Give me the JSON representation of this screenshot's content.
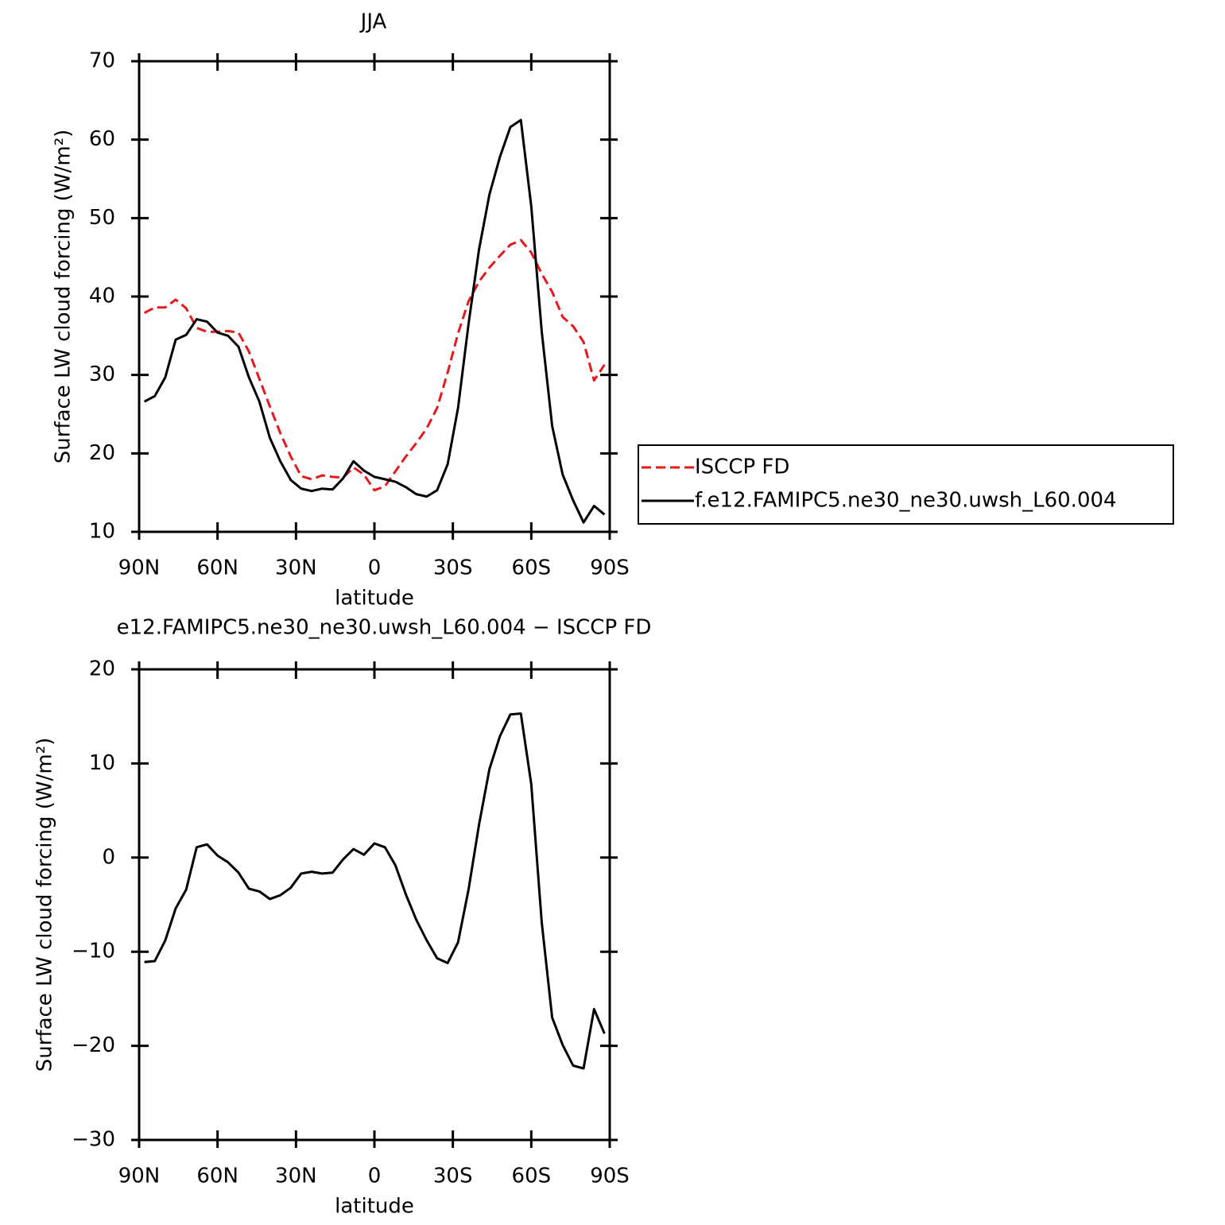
{
  "chart_data": [
    {
      "type": "line",
      "title": "JJA",
      "xlabel": "latitude",
      "ylabel": "Surface LW cloud forcing (W/m²)",
      "x": [
        88,
        84,
        80,
        76,
        72,
        68,
        64,
        60,
        56,
        52,
        48,
        44,
        40,
        36,
        32,
        28,
        24,
        20,
        16,
        12,
        8,
        4,
        0,
        -4,
        -8,
        -12,
        -16,
        -20,
        -24,
        -28,
        -32,
        -36,
        -40,
        -44,
        -48,
        -52,
        -56,
        -60,
        -64,
        -68,
        -72,
        -76,
        -80,
        -84,
        -88
      ],
      "xlim": [
        90,
        -90
      ],
      "xticks": [
        {
          "value": 90,
          "label": "90N"
        },
        {
          "value": 60,
          "label": "60N"
        },
        {
          "value": 30,
          "label": "30N"
        },
        0,
        {
          "value": -30,
          "label": "30S"
        },
        {
          "value": -60,
          "label": "60S"
        },
        {
          "value": -90,
          "label": "90S"
        }
      ],
      "ylim": [
        10,
        70
      ],
      "yticks": [
        10,
        20,
        30,
        40,
        50,
        60,
        70
      ],
      "legend": "outside-right",
      "series": [
        {
          "name": "ISCCP FD",
          "color": "#e41a1c",
          "line_style": "dashed",
          "values": [
            37.9,
            38.6,
            38.6,
            39.6,
            38.5,
            36,
            35.5,
            35.5,
            35.6,
            35.4,
            33,
            29.5,
            26,
            22.6,
            19.6,
            17.1,
            16.7,
            17.2,
            17,
            16.9,
            18.2,
            17.3,
            15.3,
            15.8,
            17.7,
            19.6,
            21.3,
            23.2,
            25.8,
            30.3,
            35.3,
            39.4,
            41.9,
            43.7,
            45.2,
            46.6,
            47.2,
            45.6,
            42.9,
            40.6,
            37.4,
            36.2,
            34.2,
            29.3,
            31.3
          ]
        },
        {
          "name": "f.e12.FAMIPC5.ne30_ne30.uwsh_L60.004",
          "color": "#000000",
          "line_style": "solid",
          "values": [
            26.6,
            27.3,
            29.7,
            34.5,
            35.1,
            37.1,
            36.8,
            35.4,
            35,
            33.6,
            29.7,
            26.6,
            22,
            19,
            16.6,
            15.5,
            15.2,
            15.5,
            15.4,
            16.8,
            19,
            17.8,
            17,
            16.7,
            16.4,
            15.7,
            14.8,
            14.5,
            15.3,
            18.6,
            25.8,
            36.5,
            46,
            53,
            57.8,
            61.6,
            62.5,
            51.5,
            35.5,
            23.5,
            17.3,
            14,
            11.2,
            13.3,
            12.2
          ]
        }
      ]
    },
    {
      "type": "line",
      "title": "e12.FAMIPC5.ne30_ne30.uwsh_L60.004 − ISCCP FD",
      "xlabel": "latitude",
      "ylabel": "Surface LW cloud forcing (W/m²)",
      "x": [
        88,
        84,
        80,
        76,
        72,
        68,
        64,
        60,
        56,
        52,
        48,
        44,
        40,
        36,
        32,
        28,
        24,
        20,
        16,
        12,
        8,
        4,
        0,
        -4,
        -8,
        -12,
        -16,
        -20,
        -24,
        -28,
        -32,
        -36,
        -40,
        -44,
        -48,
        -52,
        -56,
        -60,
        -64,
        -68,
        -72,
        -76,
        -80,
        -84,
        -88
      ],
      "xlim": [
        90,
        -90
      ],
      "xticks": [
        {
          "value": 90,
          "label": "90N"
        },
        {
          "value": 60,
          "label": "60N"
        },
        {
          "value": 30,
          "label": "30N"
        },
        0,
        {
          "value": -30,
          "label": "30S"
        },
        {
          "value": -60,
          "label": "60S"
        },
        {
          "value": -90,
          "label": "90S"
        }
      ],
      "ylim": [
        -30,
        20
      ],
      "yticks": [
        {
          "value": -30,
          "label": "−30"
        },
        {
          "value": -20,
          "label": "−20"
        },
        {
          "value": -10,
          "label": "−10"
        },
        0,
        10,
        20
      ],
      "series": [
        {
          "color": "#000000",
          "line_style": "solid",
          "values": [
            -11.1,
            -11,
            -8.8,
            -5.4,
            -3.4,
            1.1,
            1.4,
            0.2,
            -0.5,
            -1.6,
            -3.3,
            -3.6,
            -4.4,
            -4,
            -3.2,
            -1.7,
            -1.5,
            -1.7,
            -1.6,
            -0.2,
            0.9,
            0.3,
            1.5,
            1.1,
            -0.8,
            -3.9,
            -6.6,
            -8.8,
            -10.7,
            -11.2,
            -9,
            -3.4,
            3.5,
            9.4,
            12.9,
            15.2,
            15.3,
            7.8,
            -6.9,
            -17,
            -19.9,
            -22.1,
            -22.4,
            -16.1,
            -18.7
          ]
        }
      ]
    }
  ]
}
